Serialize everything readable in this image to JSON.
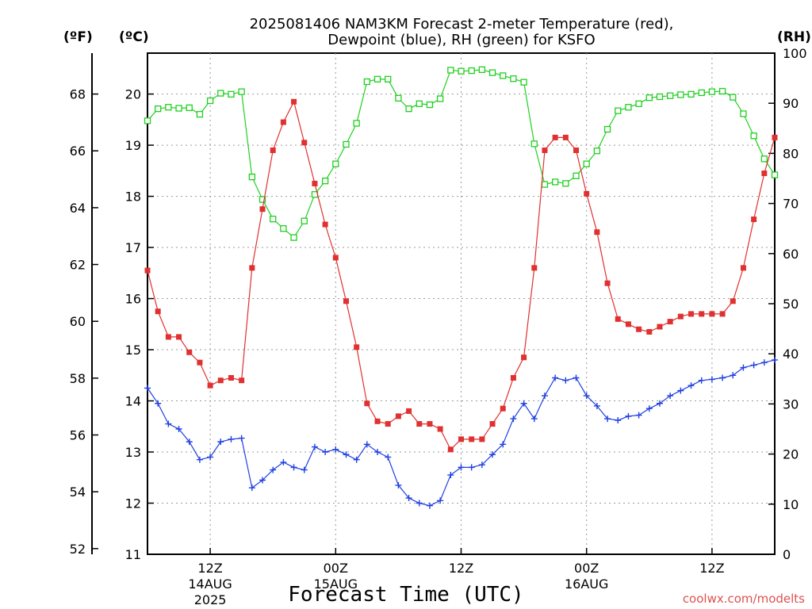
{
  "chart_data": {
    "type": "line",
    "title_line1": "2025081406 NAM3KM Forecast 2-meter Temperature (red),",
    "title_line2": "Dewpoint (blue), RH (green) for KSFO",
    "xlabel": "Forecast Time (UTC)",
    "unit_f": "(ºF)",
    "unit_c": "(ºC)",
    "unit_rh": "(RH)",
    "watermark": "coolwx.com/modelts",
    "x_ticks": [
      {
        "hour": 6,
        "line1": "12Z",
        "line2": "14AUG",
        "line3": "2025"
      },
      {
        "hour": 18,
        "line1": "00Z",
        "line2": "15AUG",
        "line3": ""
      },
      {
        "hour": 30,
        "line1": "12Z",
        "line2": "",
        "line3": ""
      },
      {
        "hour": 42,
        "line1": "00Z",
        "line2": "16AUG",
        "line3": ""
      },
      {
        "hour": 54,
        "line1": "12Z",
        "line2": "",
        "line3": ""
      }
    ],
    "x_range_hours_after_init": [
      0,
      60
    ],
    "x_step_hours": 1,
    "ylim_c": [
      11,
      20.8
    ],
    "yticks_c": [
      "11",
      "12",
      "13",
      "14",
      "15",
      "16",
      "17",
      "18",
      "19",
      "20"
    ],
    "ylim_rh": [
      0,
      100
    ],
    "yticks_rh": [
      "0",
      "10",
      "20",
      "30",
      "40",
      "50",
      "60",
      "70",
      "80",
      "90",
      "100"
    ],
    "yticks_f": [
      "52",
      "54",
      "56",
      "58",
      "60",
      "62",
      "64",
      "66",
      "68"
    ],
    "grid": true,
    "series": [
      {
        "name": "2-meter Temperature",
        "color": "#e03030",
        "marker": "filled-square",
        "units": "C",
        "values": [
          16.55,
          15.75,
          15.25,
          15.25,
          14.95,
          14.75,
          14.3,
          14.4,
          14.45,
          14.4,
          16.6,
          17.75,
          18.9,
          19.45,
          19.85,
          19.05,
          18.25,
          17.45,
          16.8,
          15.95,
          15.05,
          13.95,
          13.6,
          13.55,
          13.7,
          13.8,
          13.55,
          13.55,
          13.45,
          13.05,
          13.25,
          13.25,
          13.25,
          13.55,
          13.85,
          14.45,
          14.85,
          16.6,
          18.9,
          19.15,
          19.15,
          18.9,
          18.05,
          17.3,
          16.3,
          15.6,
          15.5,
          15.4,
          15.35,
          15.45,
          15.55,
          15.65,
          15.7,
          15.7,
          15.7,
          15.7,
          15.95,
          16.6,
          17.55,
          18.45,
          19.15
        ]
      },
      {
        "name": "Dewpoint",
        "color": "#2040e0",
        "marker": "plus",
        "units": "C",
        "values": [
          14.25,
          13.95,
          13.55,
          13.45,
          13.2,
          12.85,
          12.9,
          13.2,
          13.25,
          13.27,
          12.3,
          12.45,
          12.65,
          12.8,
          12.7,
          12.65,
          13.1,
          13.0,
          13.05,
          12.95,
          12.85,
          13.15,
          13.0,
          12.9,
          12.35,
          12.1,
          12.0,
          11.95,
          12.05,
          12.55,
          12.7,
          12.7,
          12.75,
          12.95,
          13.15,
          13.65,
          13.95,
          13.65,
          14.1,
          14.45,
          14.4,
          14.45,
          14.1,
          13.9,
          13.65,
          13.62,
          13.7,
          13.72,
          13.85,
          13.95,
          14.1,
          14.2,
          14.3,
          14.4,
          14.42,
          14.45,
          14.5,
          14.65,
          14.7,
          14.75,
          14.8
        ]
      },
      {
        "name": "RH",
        "color": "#20d020",
        "marker": "open-square",
        "units": "%",
        "values": [
          86.5,
          88.9,
          89.2,
          89.0,
          89.1,
          87.8,
          90.5,
          92.0,
          91.8,
          92.3,
          75.3,
          70.8,
          66.9,
          65.0,
          63.2,
          66.5,
          71.8,
          74.5,
          77.9,
          81.8,
          86.0,
          94.3,
          94.8,
          94.8,
          91.0,
          88.9,
          89.9,
          89.7,
          90.9,
          96.6,
          96.4,
          96.5,
          96.7,
          96.1,
          95.5,
          94.9,
          94.2,
          81.9,
          73.8,
          74.3,
          74.0,
          75.5,
          77.9,
          80.5,
          84.8,
          88.5,
          89.2,
          89.9,
          91.1,
          91.3,
          91.5,
          91.7,
          91.8,
          92.1,
          92.3,
          92.4,
          91.2,
          87.9,
          83.5,
          78.9,
          75.7
        ]
      }
    ]
  }
}
